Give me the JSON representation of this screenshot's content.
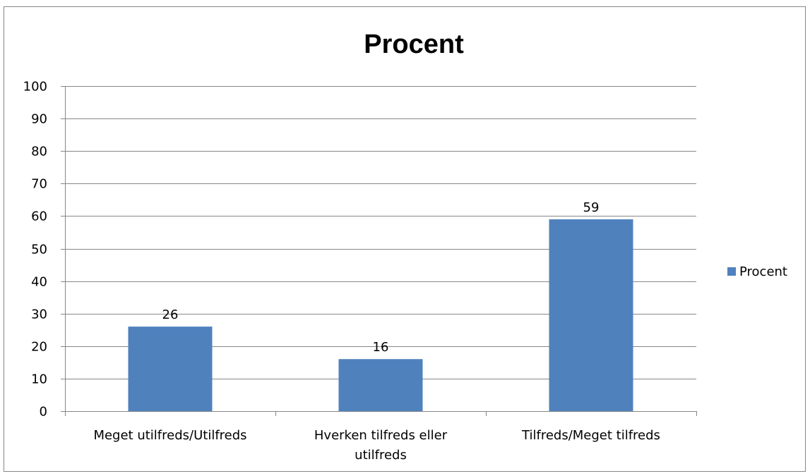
{
  "chart_data": {
    "type": "bar",
    "title": "Procent",
    "categories": [
      [
        "Meget utilfreds/Utilfreds"
      ],
      [
        "Hverken tilfreds eller",
        "utilfreds"
      ],
      [
        "Tilfreds/Meget tilfreds"
      ]
    ],
    "series": [
      {
        "name": "Procent",
        "values": [
          26,
          16,
          59
        ],
        "color": "#4F81BD"
      }
    ],
    "ylim": [
      0,
      100
    ],
    "yticks": [
      0,
      10,
      20,
      30,
      40,
      50,
      60,
      70,
      80,
      90,
      100
    ],
    "data_labels": [
      "26",
      "16",
      "59"
    ],
    "grid": true,
    "legend_position": "right",
    "xlabel": "",
    "ylabel": ""
  }
}
